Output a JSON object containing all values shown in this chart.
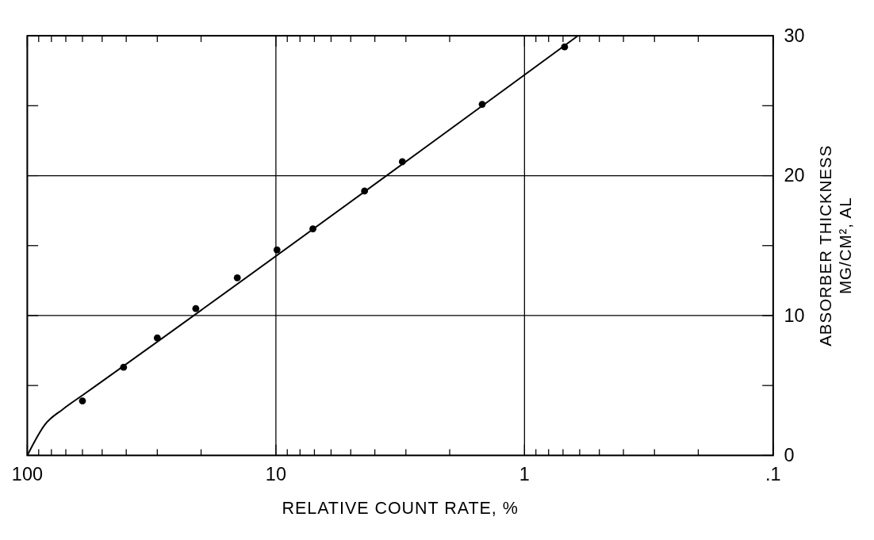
{
  "chart_data": {
    "type": "scatter",
    "xlabel": "RELATIVE COUNT RATE, %",
    "ylabel": "ABSORBER THICKNESS\nMG/CM², AL",
    "log": "x",
    "xlim": [
      100,
      0.1
    ],
    "ylim": [
      0,
      30
    ],
    "xticks": [
      {
        "value": 100,
        "label": "100"
      },
      {
        "value": 90,
        "label": null
      },
      {
        "value": 80,
        "label": null
      },
      {
        "value": 70,
        "label": null
      },
      {
        "value": 60,
        "label": null
      },
      {
        "value": 50,
        "label": null
      },
      {
        "value": 40,
        "label": null
      },
      {
        "value": 30,
        "label": null
      },
      {
        "value": 20,
        "label": null
      },
      10,
      {
        "value": 9,
        "label": null
      },
      {
        "value": 8,
        "label": null
      },
      {
        "value": 7,
        "label": null
      },
      {
        "value": 6,
        "label": null
      },
      {
        "value": 5,
        "label": null
      },
      {
        "value": 4,
        "label": null
      },
      {
        "value": 3,
        "label": null
      },
      {
        "value": 2,
        "label": null
      },
      1,
      {
        "value": 0.9,
        "label": null
      },
      {
        "value": 0.8,
        "label": null
      },
      {
        "value": 0.7,
        "label": null
      },
      {
        "value": 0.6,
        "label": null
      },
      {
        "value": 0.5,
        "label": null
      },
      {
        "value": 0.4,
        "label": null
      },
      {
        "value": 0.3,
        "label": null
      },
      {
        "value": 0.2,
        "label": null
      },
      {
        "value": 0.1,
        "label": ".1"
      }
    ],
    "yticks": [
      0,
      {
        "value": 5,
        "label": null
      },
      10,
      {
        "value": 15,
        "label": null
      },
      20,
      {
        "value": 25,
        "label": null
      },
      30
    ],
    "grid": true,
    "series": [
      {
        "marker": "circle",
        "color": "#000000",
        "x": [
          60,
          41,
          30,
          21,
          14.3,
          9.9,
          7.1,
          4.4,
          3.1,
          1.48,
          0.69
        ],
        "values": [
          3.9,
          6.3,
          8.4,
          10.5,
          12.7,
          14.7,
          16.2,
          18.9,
          21,
          25.1,
          29.2
        ]
      },
      {
        "type": "line",
        "marker": "none",
        "line_style": "solid",
        "color": "#000000",
        "x": [
          100,
          85,
          72,
          60,
          0.61
        ],
        "values": [
          0,
          2.2,
          3.3,
          4.3,
          30
        ]
      }
    ]
  }
}
